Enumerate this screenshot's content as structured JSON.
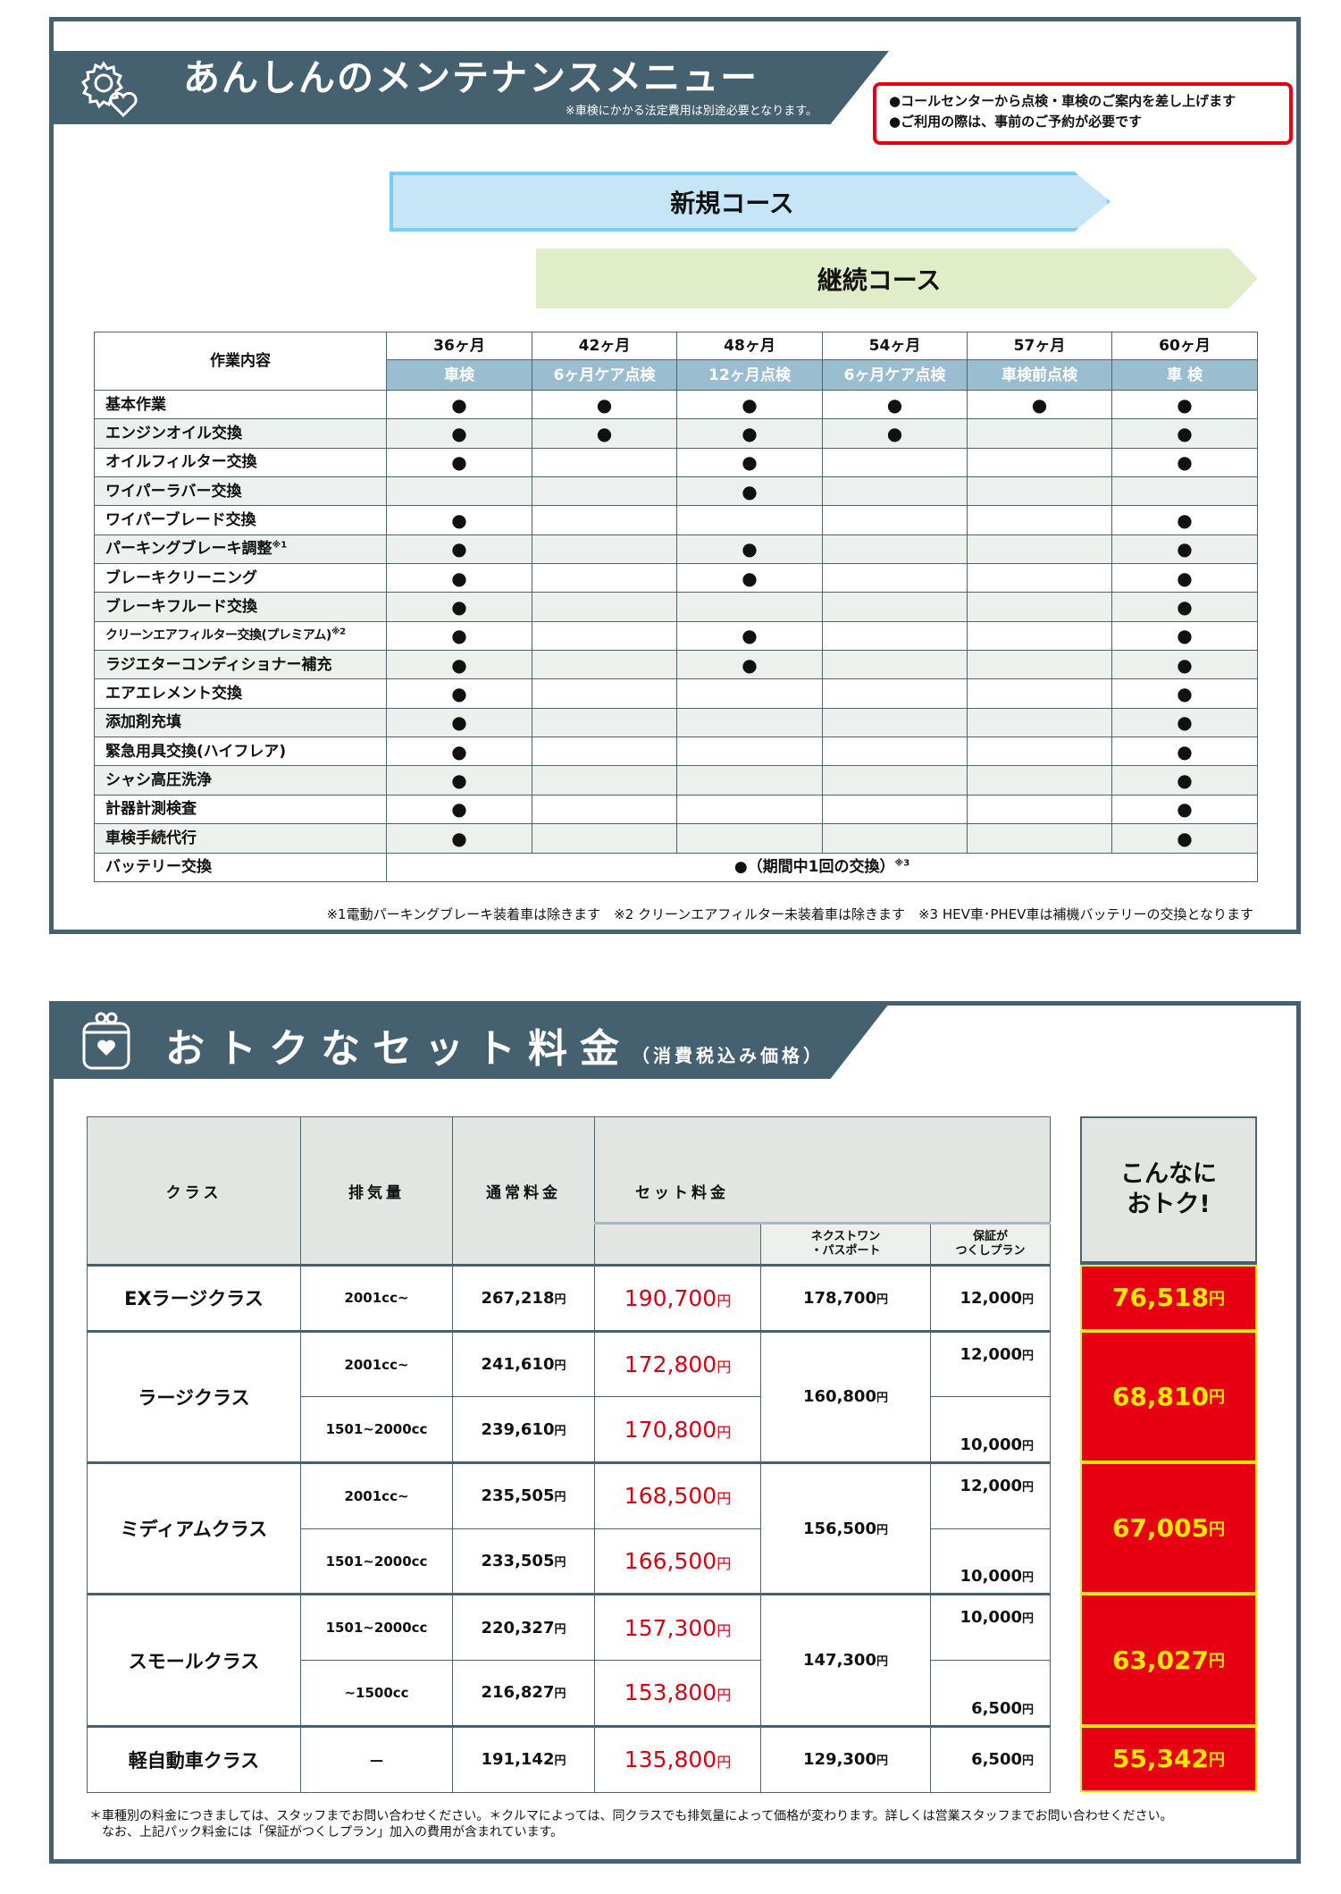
{
  "maintenance": {
    "title": "あんしんのメンテナンスメニュー",
    "subtitle": "※車検にかかる法定費用は別途必要となります。",
    "notices": [
      "●コールセンターから点検・車検のご案内を差し上げます",
      "●ご利用の際は、事前のご予約が必要です"
    ],
    "courses": {
      "new": "新規コース",
      "continuing": "継続コース"
    },
    "colors": {
      "frame": "#45606e",
      "new_course": "#c6e6f8",
      "continuing_course": "#e1edc8",
      "notice_border": "#e60012"
    },
    "table": {
      "item_header": "作業内容",
      "columns": [
        {
          "month": "36ヶ月",
          "type": "車検"
        },
        {
          "month": "42ヶ月",
          "type": "6ヶ月ケア点検"
        },
        {
          "month": "48ヶ月",
          "type": "12ヶ月点検"
        },
        {
          "month": "54ヶ月",
          "type": "6ヶ月ケア点検"
        },
        {
          "month": "57ヶ月",
          "type": "車検前点検"
        },
        {
          "month": "60ヶ月",
          "type": "車 検"
        }
      ],
      "rows": [
        {
          "item": "基本作業",
          "note": "",
          "marks": [
            "●",
            "●",
            "●",
            "●",
            "●",
            "●"
          ]
        },
        {
          "item": "エンジンオイル交換",
          "note": "",
          "marks": [
            "●",
            "●",
            "●",
            "●",
            "",
            "●"
          ]
        },
        {
          "item": "オイルフィルター交換",
          "note": "",
          "marks": [
            "●",
            "",
            "●",
            "",
            "",
            "●"
          ]
        },
        {
          "item": "ワイパーラバー交換",
          "note": "",
          "marks": [
            "",
            "",
            "●",
            "",
            "",
            ""
          ]
        },
        {
          "item": "ワイパーブレード交換",
          "note": "",
          "marks": [
            "●",
            "",
            "",
            "",
            "",
            "●"
          ]
        },
        {
          "item": "パーキングブレーキ調整",
          "note": "※1",
          "marks": [
            "●",
            "",
            "●",
            "",
            "",
            "●"
          ]
        },
        {
          "item": "ブレーキクリーニング",
          "note": "",
          "marks": [
            "●",
            "",
            "●",
            "",
            "",
            "●"
          ]
        },
        {
          "item": "ブレーキフルード交換",
          "note": "",
          "marks": [
            "●",
            "",
            "",
            "",
            "",
            "●"
          ]
        },
        {
          "item": "クリーンエアフィルター交換(プレミアム)",
          "note": "※2",
          "marks": [
            "●",
            "",
            "●",
            "",
            "",
            "●"
          ]
        },
        {
          "item": "ラジエターコンディショナー補充",
          "note": "",
          "marks": [
            "●",
            "",
            "●",
            "",
            "",
            "●"
          ]
        },
        {
          "item": "エアエレメント交換",
          "note": "",
          "marks": [
            "●",
            "",
            "",
            "",
            "",
            "●"
          ]
        },
        {
          "item": "添加剤充填",
          "note": "",
          "marks": [
            "●",
            "",
            "",
            "",
            "",
            "●"
          ]
        },
        {
          "item": "緊急用具交換(ハイフレア)",
          "note": "",
          "marks": [
            "●",
            "",
            "",
            "",
            "",
            "●"
          ]
        },
        {
          "item": "シャシ高圧洗浄",
          "note": "",
          "marks": [
            "●",
            "",
            "",
            "",
            "",
            "●"
          ]
        },
        {
          "item": "計器計測検査",
          "note": "",
          "marks": [
            "●",
            "",
            "",
            "",
            "",
            "●"
          ]
        },
        {
          "item": "車検手続代行",
          "note": "",
          "marks": [
            "●",
            "",
            "",
            "",
            "",
            "●"
          ]
        }
      ],
      "battery": {
        "item": "バッテリー交換",
        "value": "●（期間中1回の交換）",
        "note": "※3"
      }
    },
    "footnote": "※1電動パーキングブレーキ装着車は除きます　※2 クリーンエアフィルター未装着車は除きます　※3 HEV車･PHEV車は補機バッテリーの交換となります"
  },
  "pricing": {
    "title": "おトクなセット料金",
    "subtitle": "（消費税込み価格）",
    "headers": {
      "class": "クラス",
      "displacement": "排気量",
      "normal": "通常料金",
      "set": "セット料金",
      "nextone": "ネクストワン\n・パスポート",
      "guarantee": "保証が\nつくしプラン",
      "savings": "こんなに\nおトク!"
    },
    "yen": "円",
    "colors": {
      "set_price": "#d7000f",
      "savings_bg": "#e60012",
      "savings_text": "#ffe600"
    },
    "classes": [
      {
        "name": "EXラージクラス",
        "nextone": "178,700",
        "savings": "76,518",
        "rows": [
          {
            "cc": "2001cc~",
            "normal": "267,218",
            "set": "190,700",
            "guarantee": "12,000"
          }
        ]
      },
      {
        "name": "ラージクラス",
        "nextone": "160,800",
        "savings": "68,810",
        "rows": [
          {
            "cc": "2001cc~",
            "normal": "241,610",
            "set": "172,800",
            "guarantee": "12,000"
          },
          {
            "cc": "1501~2000cc",
            "normal": "239,610",
            "set": "170,800",
            "guarantee": "10,000"
          }
        ]
      },
      {
        "name": "ミディアムクラス",
        "nextone": "156,500",
        "savings": "67,005",
        "rows": [
          {
            "cc": "2001cc~",
            "normal": "235,505",
            "set": "168,500",
            "guarantee": "12,000"
          },
          {
            "cc": "1501~2000cc",
            "normal": "233,505",
            "set": "166,500",
            "guarantee": "10,000"
          }
        ]
      },
      {
        "name": "スモールクラス",
        "nextone": "147,300",
        "savings": "63,027",
        "rows": [
          {
            "cc": "1501~2000cc",
            "normal": "220,327",
            "set": "157,300",
            "guarantee": "10,000"
          },
          {
            "cc": "~1500cc",
            "normal": "216,827",
            "set": "153,800",
            "guarantee": "6,500"
          }
        ]
      },
      {
        "name": "軽自動車クラス",
        "nextone": "129,300",
        "savings": "55,342",
        "rows": [
          {
            "cc": "—",
            "normal": "191,142",
            "set": "135,800",
            "guarantee": "6,500"
          }
        ]
      }
    ],
    "footnotes": [
      "＊車種別の料金につきましては、スタッフまでお問い合わせください。＊クルマによっては、同クラスでも排気量によって価格が変わります。詳しくは営業スタッフまでお問い合わせください。",
      "　なお、上記パック料金には「保証がつくしプラン」加入の費用が含まれています。"
    ]
  }
}
